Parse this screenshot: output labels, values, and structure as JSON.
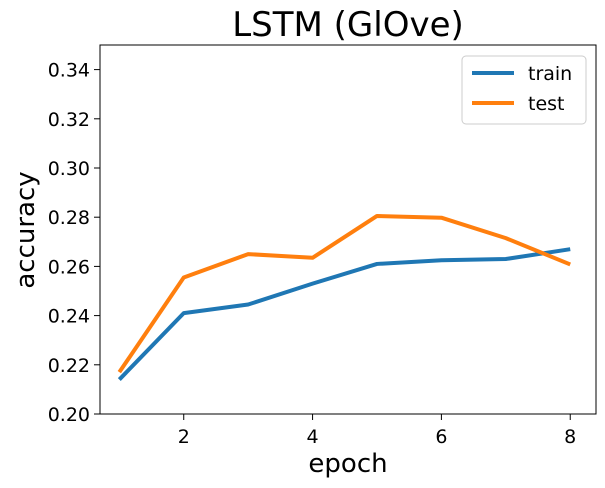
{
  "chart_data": {
    "type": "line",
    "title": "LSTM (GlOve)",
    "xlabel": "epoch",
    "ylabel": "accuracy",
    "x": [
      1,
      2,
      3,
      4,
      5,
      6,
      7,
      8
    ],
    "xlim": [
      0.7,
      8.4
    ],
    "ylim": [
      0.2,
      0.35
    ],
    "xticks": [
      2,
      4,
      6,
      8
    ],
    "yticks": [
      0.2,
      0.22,
      0.24,
      0.26,
      0.28,
      0.3,
      0.32,
      0.34
    ],
    "grid": false,
    "legend_position": "top-right",
    "series": [
      {
        "name": "train",
        "color": "#1f77b4",
        "values": [
          0.214,
          0.241,
          0.2445,
          0.253,
          0.261,
          0.2625,
          0.263,
          0.267
        ]
      },
      {
        "name": "test",
        "color": "#ff7f0e",
        "values": [
          0.217,
          0.2555,
          0.265,
          0.2635,
          0.2805,
          0.2798,
          0.2715,
          0.2608
        ]
      }
    ]
  }
}
